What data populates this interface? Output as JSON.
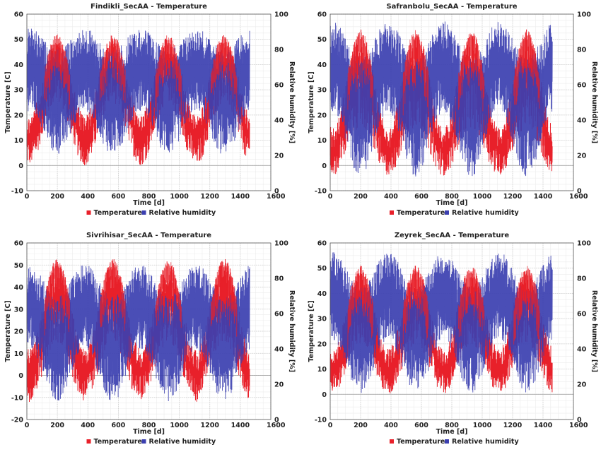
{
  "chart_data": [
    {
      "type": "line",
      "title": "Findikli_SecAA - Temperature",
      "xlabel": "Time [d]",
      "ylabel": "Temperature [C]",
      "y2label": "Relative humidity [%]",
      "xlim": [
        0,
        1600
      ],
      "ylim": [
        -10,
        60
      ],
      "y2lim": [
        0,
        100
      ],
      "xticks": [
        0,
        200,
        400,
        600,
        800,
        1000,
        1200,
        1400,
        1600
      ],
      "yticks": [
        -10,
        0,
        10,
        20,
        30,
        40,
        50,
        60
      ],
      "y2ticks": [
        0,
        20,
        40,
        60,
        80,
        100
      ],
      "grid": true,
      "legend_position": "bottom-center",
      "series": [
        {
          "name": "Temperature",
          "color": "#e8202a",
          "axis": "left",
          "x_range": [
            0,
            1460
          ],
          "summer_range": [
            25,
            52
          ],
          "winter_range": [
            0,
            20
          ],
          "extremes": [
            -4,
            57
          ]
        },
        {
          "name": "Relative humidity",
          "color": "#3b3fb0",
          "axis": "right",
          "x_range": [
            0,
            1460
          ],
          "summer_range": [
            20,
            80
          ],
          "winter_range": [
            45,
            92
          ]
        }
      ]
    },
    {
      "type": "line",
      "title": "Safranbolu_SecAA - Temperature",
      "xlabel": "Time [d]",
      "ylabel": "Temperature [C]",
      "y2label": "Relative humidity [%]",
      "xlim": [
        0,
        1600
      ],
      "ylim": [
        -10,
        60
      ],
      "y2lim": [
        0,
        100
      ],
      "xticks": [
        0,
        200,
        400,
        600,
        800,
        1000,
        1200,
        1400,
        1600
      ],
      "yticks": [
        -10,
        0,
        10,
        20,
        30,
        40,
        50,
        60
      ],
      "y2ticks": [
        0,
        20,
        40,
        60,
        80,
        100
      ],
      "grid": true,
      "legend_position": "bottom-center",
      "series": [
        {
          "name": "Temperature",
          "color": "#e8202a",
          "axis": "left",
          "x_range": [
            0,
            1460
          ],
          "summer_range": [
            15,
            54
          ],
          "winter_range": [
            -4,
            15
          ],
          "extremes": [
            -5,
            55
          ]
        },
        {
          "name": "Relative humidity",
          "color": "#3b3fb0",
          "axis": "right",
          "x_range": [
            0,
            1460
          ],
          "summer_range": [
            8,
            75
          ],
          "winter_range": [
            45,
            96
          ]
        }
      ]
    },
    {
      "type": "line",
      "title": "Sivrihisar_SecAA - Temperature",
      "xlabel": "Time [d]",
      "ylabel": "Temperature [C]",
      "y2label": "Relative humidity [%]",
      "xlim": [
        0,
        1600
      ],
      "ylim": [
        -20,
        60
      ],
      "y2lim": [
        0,
        100
      ],
      "xticks": [
        0,
        200,
        400,
        600,
        800,
        1000,
        1200,
        1400,
        1600
      ],
      "yticks": [
        -20,
        -10,
        0,
        10,
        20,
        30,
        40,
        50,
        60
      ],
      "y2ticks": [
        0,
        20,
        40,
        60,
        80,
        100
      ],
      "grid": true,
      "legend_position": "bottom-center",
      "series": [
        {
          "name": "Temperature",
          "color": "#e8202a",
          "axis": "left",
          "x_range": [
            0,
            1460
          ],
          "summer_range": [
            15,
            53
          ],
          "winter_range": [
            -12,
            12
          ],
          "extremes": [
            -13,
            53
          ]
        },
        {
          "name": "Relative humidity",
          "color": "#3b3fb0",
          "axis": "right",
          "x_range": [
            0,
            1460
          ],
          "summer_range": [
            10,
            70
          ],
          "winter_range": [
            40,
            88
          ]
        }
      ]
    },
    {
      "type": "line",
      "title": "Zeyrek_SecAA - Temperature",
      "xlabel": "Time [d]",
      "ylabel": "Temperature [C]",
      "y2label": "Relative humidity [%]",
      "xlim": [
        0,
        1600
      ],
      "ylim": [
        -10,
        60
      ],
      "y2lim": [
        0,
        100
      ],
      "xticks": [
        0,
        200,
        400,
        600,
        800,
        1000,
        1200,
        1400,
        1600
      ],
      "yticks": [
        -10,
        0,
        10,
        20,
        30,
        40,
        50,
        60
      ],
      "y2ticks": [
        0,
        20,
        40,
        60,
        80,
        100
      ],
      "grid": true,
      "legend_position": "bottom-center",
      "series": [
        {
          "name": "Temperature",
          "color": "#e8202a",
          "axis": "left",
          "x_range": [
            0,
            1460
          ],
          "summer_range": [
            20,
            51
          ],
          "winter_range": [
            0,
            18
          ],
          "extremes": [
            -1,
            52
          ]
        },
        {
          "name": "Relative humidity",
          "color": "#3b3fb0",
          "axis": "right",
          "x_range": [
            0,
            1460
          ],
          "summer_range": [
            15,
            75
          ],
          "winter_range": [
            45,
            95
          ]
        }
      ]
    }
  ]
}
